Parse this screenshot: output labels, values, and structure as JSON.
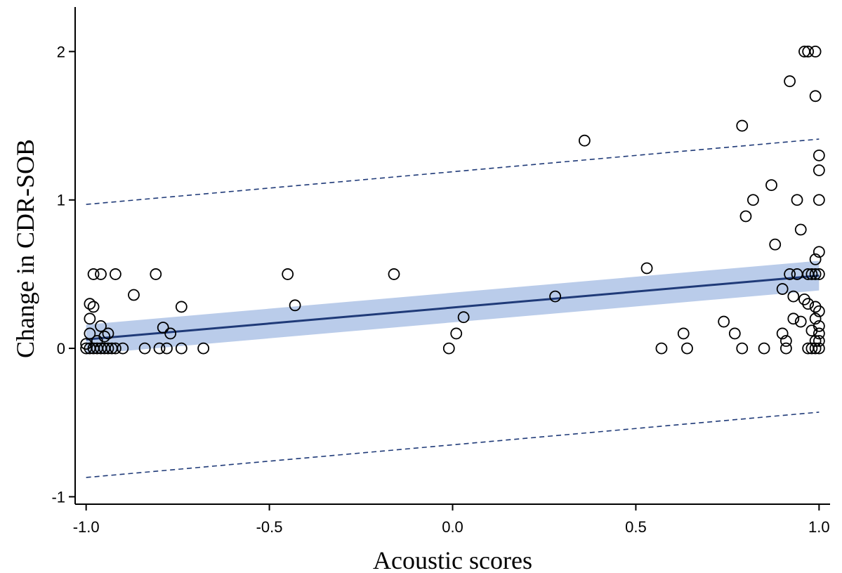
{
  "chart_data": {
    "type": "scatter",
    "title": "",
    "xlabel": "Acoustic scores",
    "ylabel": "Change in CDR-SOB",
    "xlim": [
      -1.03,
      1.03
    ],
    "ylim": [
      -1.05,
      2.3
    ],
    "xticks": [
      -1.0,
      -0.5,
      0.0,
      0.5,
      1.0
    ],
    "xtick_labels": [
      "-1.0",
      "-0.5",
      "0.0",
      "0.5",
      "1.0"
    ],
    "yticks": [
      -1,
      0,
      1,
      2
    ],
    "ytick_labels": [
      "-1",
      "0",
      "1",
      "2"
    ],
    "grid": false,
    "legend": "none",
    "colors": {
      "points": "#000000",
      "fit_line": "#1f3a78",
      "confidence_band": "#aec3e6",
      "prediction_interval": "#1f3a78"
    },
    "fit_line": {
      "x": [
        -1.0,
        1.0
      ],
      "y": [
        0.06,
        0.49
      ]
    },
    "confidence_band": {
      "x": [
        -1.0,
        1.0
      ],
      "lower": [
        -0.04,
        0.39
      ],
      "upper": [
        0.16,
        0.59
      ]
    },
    "prediction_interval": {
      "x": [
        -1.0,
        1.0
      ],
      "lower": [
        -0.87,
        -0.43
      ],
      "upper": [
        0.97,
        1.41
      ]
    },
    "points": [
      {
        "x": -1.0,
        "y": 0
      },
      {
        "x": -0.99,
        "y": 0
      },
      {
        "x": -0.98,
        "y": 0
      },
      {
        "x": -0.97,
        "y": 0
      },
      {
        "x": -0.96,
        "y": 0
      },
      {
        "x": -0.95,
        "y": 0
      },
      {
        "x": -0.94,
        "y": 0
      },
      {
        "x": -0.93,
        "y": 0
      },
      {
        "x": -0.92,
        "y": 0
      },
      {
        "x": -0.9,
        "y": 0
      },
      {
        "x": -1.0,
        "y": 0.03
      },
      {
        "x": -0.99,
        "y": 0.1
      },
      {
        "x": -0.99,
        "y": 0.2
      },
      {
        "x": -0.99,
        "y": 0.3
      },
      {
        "x": -0.98,
        "y": 0.28
      },
      {
        "x": -0.98,
        "y": 0.5
      },
      {
        "x": -0.96,
        "y": 0.5
      },
      {
        "x": -0.97,
        "y": 0.05
      },
      {
        "x": -0.96,
        "y": 0.15
      },
      {
        "x": -0.95,
        "y": 0.08
      },
      {
        "x": -0.94,
        "y": 0.1
      },
      {
        "x": -0.92,
        "y": 0.5
      },
      {
        "x": -0.87,
        "y": 0.36
      },
      {
        "x": -0.84,
        "y": 0
      },
      {
        "x": -0.81,
        "y": 0.5
      },
      {
        "x": -0.8,
        "y": 0
      },
      {
        "x": -0.79,
        "y": 0.14
      },
      {
        "x": -0.78,
        "y": 0
      },
      {
        "x": -0.77,
        "y": 0.1
      },
      {
        "x": -0.74,
        "y": 0
      },
      {
        "x": -0.74,
        "y": 0.28
      },
      {
        "x": -0.68,
        "y": 0
      },
      {
        "x": -0.45,
        "y": 0.5
      },
      {
        "x": -0.43,
        "y": 0.29
      },
      {
        "x": -0.16,
        "y": 0.5
      },
      {
        "x": -0.01,
        "y": 0
      },
      {
        "x": 0.01,
        "y": 0.1
      },
      {
        "x": 0.03,
        "y": 0.21
      },
      {
        "x": 0.28,
        "y": 0.35
      },
      {
        "x": 0.36,
        "y": 1.4
      },
      {
        "x": 0.53,
        "y": 0.54
      },
      {
        "x": 0.57,
        "y": 0
      },
      {
        "x": 0.63,
        "y": 0.1
      },
      {
        "x": 0.64,
        "y": 0
      },
      {
        "x": 0.74,
        "y": 0.18
      },
      {
        "x": 0.77,
        "y": 0.1
      },
      {
        "x": 0.79,
        "y": 1.5
      },
      {
        "x": 0.79,
        "y": 0
      },
      {
        "x": 0.8,
        "y": 0.89
      },
      {
        "x": 0.82,
        "y": 1.0
      },
      {
        "x": 0.85,
        "y": 0
      },
      {
        "x": 0.87,
        "y": 1.1
      },
      {
        "x": 0.88,
        "y": 0.7
      },
      {
        "x": 0.9,
        "y": 0.1
      },
      {
        "x": 0.9,
        "y": 0.4
      },
      {
        "x": 0.91,
        "y": 0.05
      },
      {
        "x": 0.91,
        "y": 0
      },
      {
        "x": 0.92,
        "y": 1.8
      },
      {
        "x": 0.92,
        "y": 0.5
      },
      {
        "x": 0.93,
        "y": 0.2
      },
      {
        "x": 0.93,
        "y": 0.35
      },
      {
        "x": 0.94,
        "y": 1.0
      },
      {
        "x": 0.94,
        "y": 0.5
      },
      {
        "x": 0.95,
        "y": 0.8
      },
      {
        "x": 0.95,
        "y": 0.18
      },
      {
        "x": 0.96,
        "y": 0.33
      },
      {
        "x": 0.96,
        "y": 2.0
      },
      {
        "x": 0.97,
        "y": 2.0
      },
      {
        "x": 0.97,
        "y": 0.5
      },
      {
        "x": 0.97,
        "y": 0.3
      },
      {
        "x": 0.97,
        "y": 0
      },
      {
        "x": 0.98,
        "y": 0.5
      },
      {
        "x": 0.98,
        "y": 0.12
      },
      {
        "x": 0.98,
        "y": 0
      },
      {
        "x": 0.99,
        "y": 2.0
      },
      {
        "x": 0.99,
        "y": 1.7
      },
      {
        "x": 0.99,
        "y": 0.6
      },
      {
        "x": 0.99,
        "y": 0.5
      },
      {
        "x": 0.99,
        "y": 0.28
      },
      {
        "x": 0.99,
        "y": 0.2
      },
      {
        "x": 0.99,
        "y": 0.05
      },
      {
        "x": 0.99,
        "y": 0
      },
      {
        "x": 1.0,
        "y": 1.3
      },
      {
        "x": 1.0,
        "y": 1.2
      },
      {
        "x": 1.0,
        "y": 1.0
      },
      {
        "x": 1.0,
        "y": 0.65
      },
      {
        "x": 1.0,
        "y": 0.5
      },
      {
        "x": 1.0,
        "y": 0.25
      },
      {
        "x": 1.0,
        "y": 0.15
      },
      {
        "x": 1.0,
        "y": 0.1
      },
      {
        "x": 1.0,
        "y": 0.05
      },
      {
        "x": 1.0,
        "y": 0
      }
    ]
  }
}
